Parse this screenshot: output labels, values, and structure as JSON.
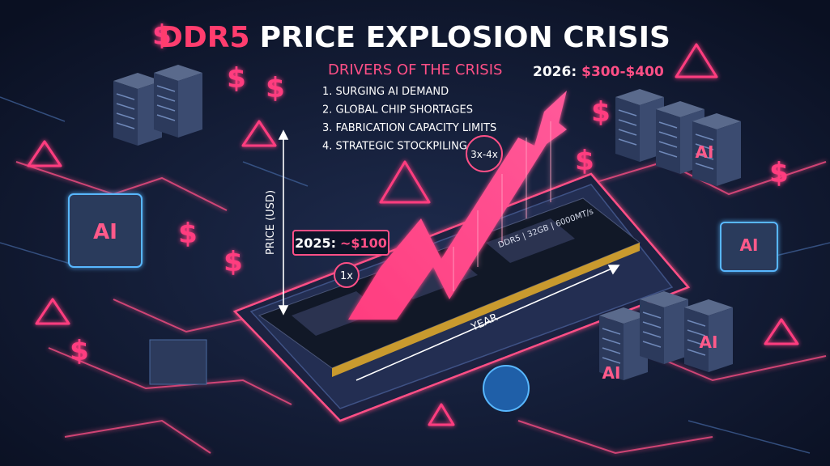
{
  "header": {
    "title_highlight": "DDR5",
    "title_rest": "PRICE EXPLOSION CRISIS"
  },
  "drivers": {
    "heading": "DRIVERS OF THE CRISIS",
    "items": [
      "1. SURGING AI DEMAND",
      "2. GLOBAL CHIP SHORTAGES",
      "3. FABRICATION CAPACITY LIMITS",
      "4. STRATEGIC STOCKPILING"
    ]
  },
  "callouts": {
    "future_year": "2026:",
    "future_price": "$300-$400",
    "current_year": "2025:",
    "current_price": "~$100",
    "base_multiple": "1x",
    "growth_multiple": "3x-4x"
  },
  "axes": {
    "y_label": "PRICE (USD)",
    "x_label": "YEAR"
  },
  "module": {
    "label": "DDR5 | 32GB | 6000MT/s"
  },
  "icons": {
    "ai": "AI",
    "dollar": "$"
  }
}
